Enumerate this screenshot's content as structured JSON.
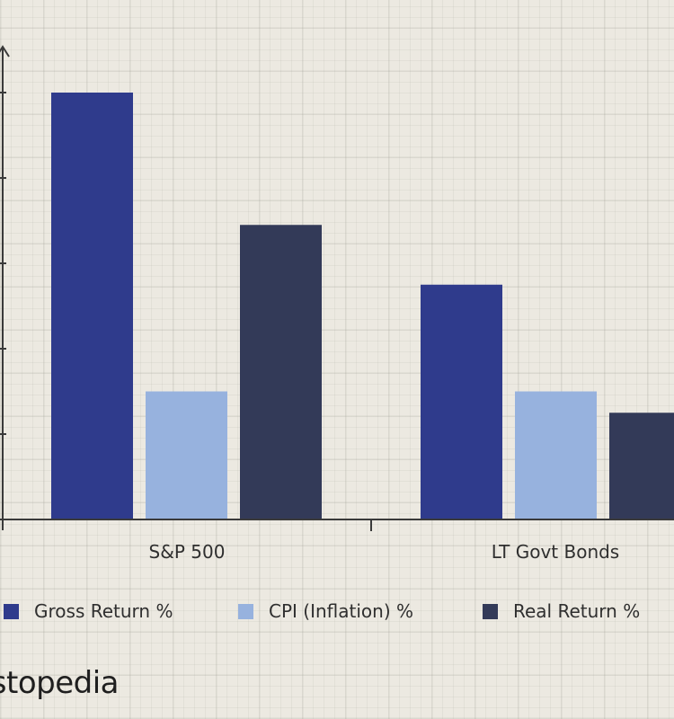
{
  "chart_data": {
    "type": "bar",
    "categories": [
      "S&P 500",
      "LT Govt Bonds"
    ],
    "series": [
      {
        "name": "Gross Return %",
        "color": "#2f3b8c",
        "values": [
          10.0,
          5.5
        ]
      },
      {
        "name": "CPI (Inflation) %",
        "color": "#97b2de",
        "values": [
          3.0,
          3.0
        ]
      },
      {
        "name": "Real Return %",
        "color": "#333a58",
        "values": [
          6.9,
          2.5
        ]
      }
    ],
    "ylim": [
      0,
      10
    ],
    "ytick_step": 2,
    "legend_position": "bottom",
    "grid": false
  },
  "logo": {
    "text": "stopedia"
  }
}
